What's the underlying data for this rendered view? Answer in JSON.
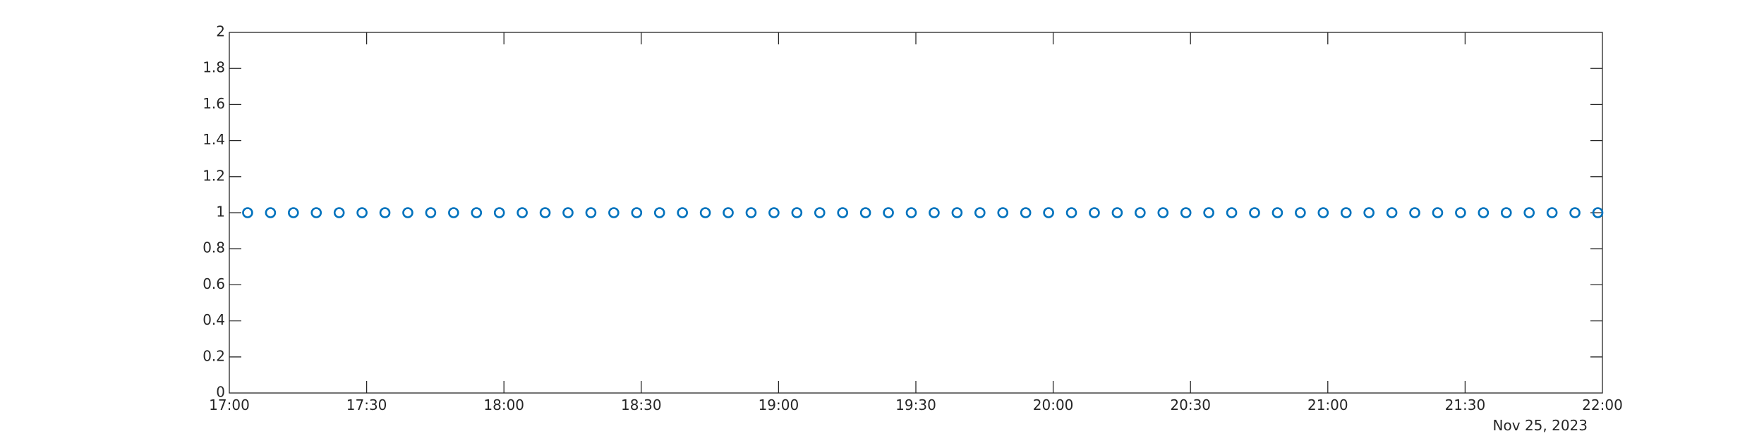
{
  "chart_data": {
    "type": "scatter",
    "marker": "circle",
    "color": "#0072BD",
    "title": "",
    "xlabel": "",
    "ylabel": "",
    "grid": false,
    "x_axis": {
      "start": "17:00",
      "end": "22:00",
      "ticks": [
        "17:00",
        "17:30",
        "18:00",
        "18:30",
        "19:00",
        "19:30",
        "20:00",
        "20:30",
        "21:00",
        "21:30",
        "22:00"
      ],
      "date_label": "Nov 25, 2023"
    },
    "y_axis": {
      "ylim": [
        0,
        2
      ],
      "ticks": [
        "0",
        "0.2",
        "0.4",
        "0.6",
        "0.8",
        "1",
        "1.2",
        "1.4",
        "1.6",
        "1.8",
        "2"
      ]
    },
    "series": [
      {
        "x": [
          "17:04",
          "17:09",
          "17:14",
          "17:19",
          "17:24",
          "17:29",
          "17:34",
          "17:39",
          "17:44",
          "17:49",
          "17:54",
          "17:59",
          "18:04",
          "18:09",
          "18:14",
          "18:19",
          "18:24",
          "18:29",
          "18:34",
          "18:39",
          "18:44",
          "18:49",
          "18:54",
          "18:59",
          "19:04",
          "19:09",
          "19:14",
          "19:19",
          "19:24",
          "19:29",
          "19:34",
          "19:39",
          "19:44",
          "19:49",
          "19:54",
          "19:59",
          "20:04",
          "20:09",
          "20:14",
          "20:19",
          "20:24",
          "20:29",
          "20:34",
          "20:39",
          "20:44",
          "20:49",
          "20:54",
          "20:59",
          "21:04",
          "21:09",
          "21:14",
          "21:19",
          "21:24",
          "21:29",
          "21:34",
          "21:39",
          "21:44",
          "21:49",
          "21:54",
          "21:59"
        ],
        "y": [
          1,
          1,
          1,
          1,
          1,
          1,
          1,
          1,
          1,
          1,
          1,
          1,
          1,
          1,
          1,
          1,
          1,
          1,
          1,
          1,
          1,
          1,
          1,
          1,
          1,
          1,
          1,
          1,
          1,
          1,
          1,
          1,
          1,
          1,
          1,
          1,
          1,
          1,
          1,
          1,
          1,
          1,
          1,
          1,
          1,
          1,
          1,
          1,
          1,
          1,
          1,
          1,
          1,
          1,
          1,
          1,
          1,
          1,
          1,
          1
        ]
      }
    ]
  }
}
